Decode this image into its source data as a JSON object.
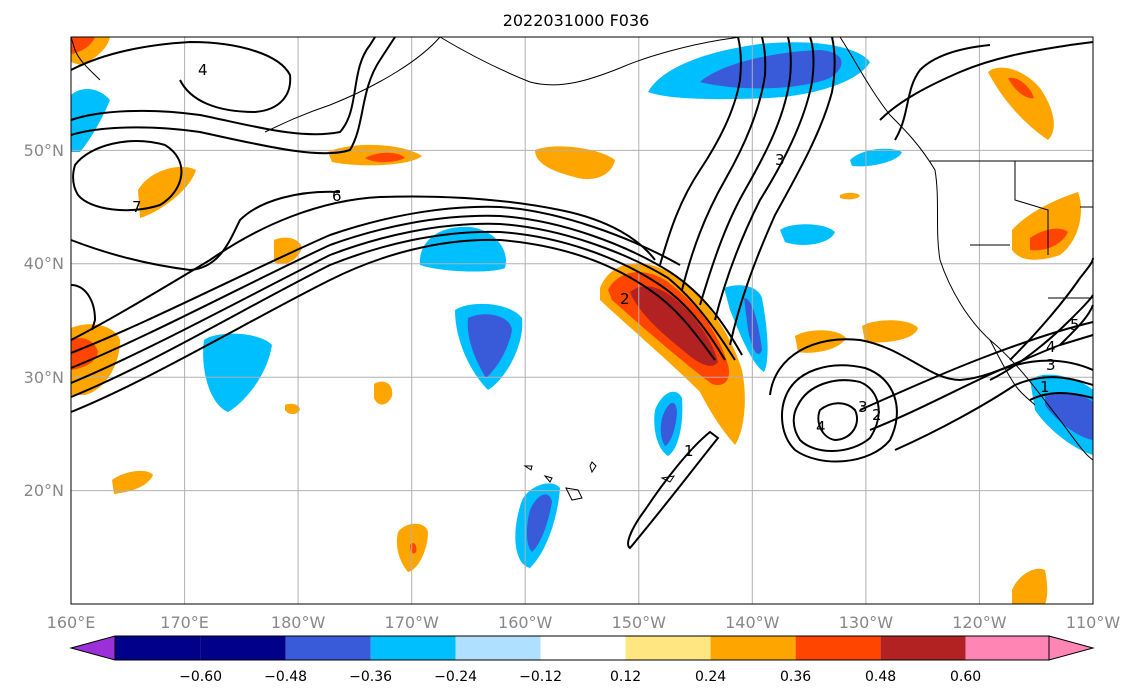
{
  "title": "2022031000 F036",
  "map": {
    "lon_range": [
      160,
      250
    ],
    "lat_range": [
      10,
      60
    ],
    "lon_ticks": [
      "160°E",
      "170°E",
      "180°W",
      "170°W",
      "160°W",
      "150°W",
      "140°W",
      "130°W",
      "120°W",
      "110°W"
    ],
    "lat_ticks": [
      "50°N",
      "40°N",
      "30°N",
      "20°N"
    ],
    "contour_labels": [
      "4",
      "6",
      "3",
      "7",
      "2",
      "1",
      "3",
      "2",
      "4",
      "5",
      "4",
      "3",
      "1"
    ],
    "colors": {
      "extreme_neg": "#9b30d9",
      "strong_neg": "#00008b",
      "mid_neg": "#3a5bd9",
      "neg": "#00bfff",
      "weak_neg": "#b0e0ff",
      "weak_pos": "#ffe680",
      "pos": "#ffa500",
      "mid_pos": "#ff4500",
      "strong_pos": "#b22222",
      "extreme_pos": "#ff85b5"
    }
  },
  "colorbar": {
    "ticks": [
      "−0.60",
      "−0.48",
      "−0.36",
      "−0.24",
      "−0.12",
      "0.12",
      "0.24",
      "0.36",
      "0.48",
      "0.60"
    ],
    "colors": [
      "#9b30d9",
      "#00008b",
      "#3a5bd9",
      "#00bfff",
      "#b0e0ff",
      "#ffffff",
      "#ffe680",
      "#ffa500",
      "#ff4500",
      "#b22222",
      "#ff85b5"
    ]
  }
}
